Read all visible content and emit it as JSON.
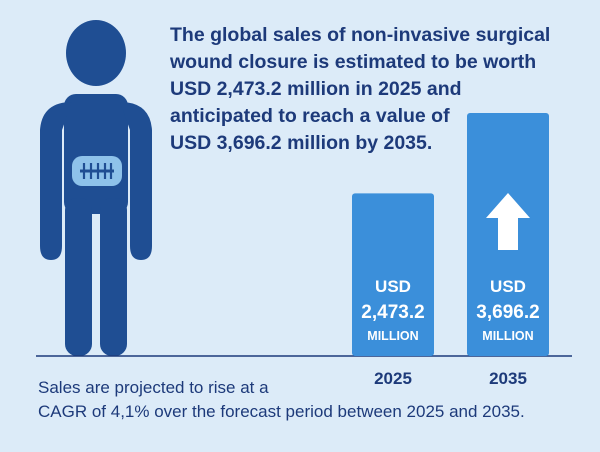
{
  "headline": {
    "lines": [
      "The global sales of non-invasive surgical",
      "wound closure is estimated to be worth",
      "USD 2,473.2 million in 2025 and",
      "anticipated to reach a value of",
      "USD 3,696.2 million by 2035."
    ]
  },
  "footer": {
    "lines": [
      "Sales are projected to rise at a",
      "CAGR of 4,1% over the forecast period between 2025 and 2035."
    ]
  },
  "colors": {
    "background": "#dcebf8",
    "figure": "#1f4e93",
    "wound_patch": "#8ec2ea",
    "bar": "#3b8fda",
    "text_dark": "#1d3a7a",
    "bar_text": "#ffffff"
  },
  "icons": [
    "person-figure-icon",
    "stitched-wound-icon",
    "up-arrow-icon"
  ],
  "chart_data": {
    "type": "bar",
    "categories": [
      "2025",
      "2035"
    ],
    "values": [
      2473.2,
      3696.2
    ],
    "bar_labels": [
      {
        "currency": "USD",
        "value": "2,473.2",
        "unit": "MILLION"
      },
      {
        "currency": "USD",
        "value": "3,696.2",
        "unit": "MILLION"
      }
    ],
    "title": "",
    "xlabel": "",
    "ylabel": "",
    "grid": false
  }
}
